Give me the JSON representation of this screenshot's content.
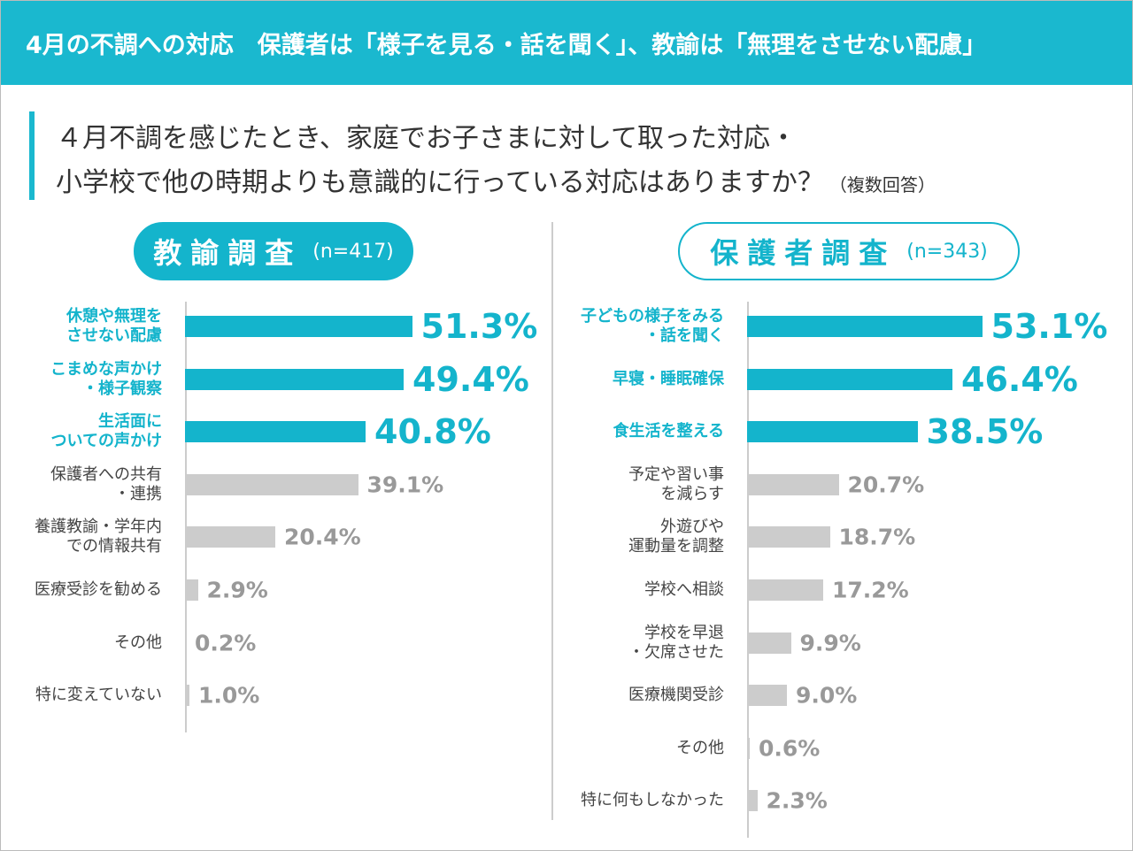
{
  "header": {
    "title": "4月の不調への対応　保護者は「様子を見る・話を聞く」、教諭は「無理をさせない配慮」"
  },
  "question": {
    "lines": [
      "４月不調を感じたとき、家庭でお子さまに対して取った対応・",
      "小学校で他の時期よりも意識的に行っている対応はありますか？"
    ],
    "note": "（複数回答）"
  },
  "chart_data": [
    {
      "type": "bar",
      "title": "教諭調査",
      "subtitle": "(n=417)",
      "categories": [
        "休憩や無理を\nさせない配慮",
        "こまめな声かけ\n・様子観察",
        "生活面に\nついての声かけ",
        "保護者への共有\n・連携",
        "養護教諭・学年内\nでの情報共有",
        "医療受診を勧める",
        "その他",
        "特に変えていない"
      ],
      "values": [
        51.3,
        49.4,
        40.8,
        39.1,
        20.4,
        2.9,
        0.2,
        1.0
      ],
      "value_labels": [
        "51.3%",
        "49.4%",
        "40.8%",
        "39.1%",
        "20.4%",
        "2.9%",
        "0.2%",
        "1.0%"
      ],
      "colors": [
        "#14b4cc",
        "#14b4cc",
        "#14b4cc",
        "#cccccc",
        "#cccccc",
        "#cccccc",
        "#cccccc",
        "#cccccc"
      ]
    },
    {
      "type": "bar",
      "title": "保護者調査",
      "subtitle": "(n=343)",
      "categories": [
        "子どもの様子をみる\n・話を聞く",
        "早寝・睡眠確保",
        "食生活を整える",
        "予定や習い事\nを減らす",
        "外遊びや\n運動量を調整",
        "学校へ相談",
        "学校を早退\n・欠席させた",
        "医療機関受診",
        "その他",
        "特に何もしなかった"
      ],
      "values": [
        53.1,
        46.4,
        38.5,
        20.7,
        18.7,
        17.2,
        9.9,
        9.0,
        0.6,
        2.3
      ],
      "value_labels": [
        "53.1%",
        "46.4%",
        "38.5%",
        "20.7%",
        "18.7%",
        "17.2%",
        "9.9%",
        "9.0%",
        "0.6%",
        "2.3%"
      ],
      "colors": [
        "#14b4cc",
        "#14b4cc",
        "#14b4cc",
        "#cccccc",
        "#cccccc",
        "#cccccc",
        "#cccccc",
        "#cccccc",
        "#cccccc",
        "#cccccc"
      ]
    }
  ]
}
